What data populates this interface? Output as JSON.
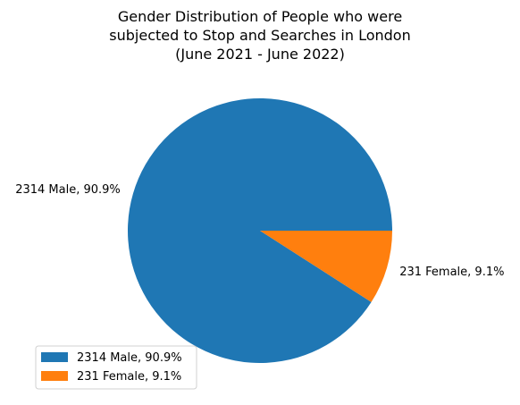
{
  "chart_data": {
    "type": "pie",
    "title_lines": [
      "Gender Distribution of People who were",
      "subjected to Stop and Searches in London",
      "(June 2021 - June 2022)"
    ],
    "slices": [
      {
        "label": "2314 Male, 90.9%",
        "value": 2314,
        "percent": 90.9,
        "color": "#1f77b4"
      },
      {
        "label": "231 Female, 9.1%",
        "value": 231,
        "percent": 9.1,
        "color": "#ff7f0e"
      }
    ],
    "legend": {
      "placement": "lower-left",
      "entries": [
        "2314 Male, 90.9%",
        "231 Female, 9.1%"
      ]
    }
  }
}
